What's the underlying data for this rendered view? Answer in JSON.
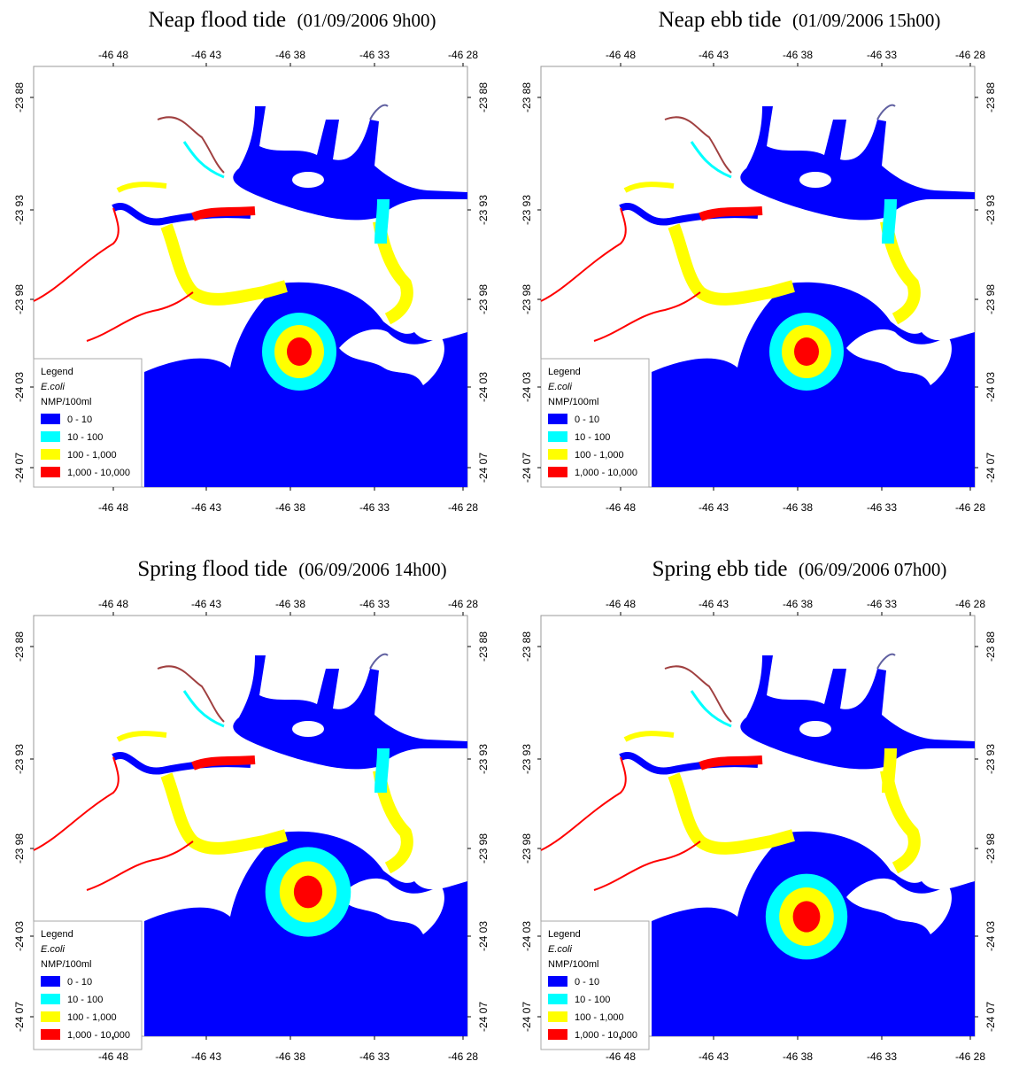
{
  "panels": [
    {
      "title": "Neap flood tide",
      "date": "(01/09/2006 9h00)"
    },
    {
      "title": "Neap ebb tide",
      "date": "(01/09/2006 15h00)"
    },
    {
      "title": "Spring flood tide",
      "date": "(06/09/2006 14h00)"
    },
    {
      "title": "Spring ebb tide",
      "date": "(06/09/2006 07h00)"
    }
  ],
  "axes": {
    "x_ticks": [
      "-46 48",
      "-46 43",
      "-46 38",
      "-46 33",
      "-46 28"
    ],
    "y_ticks": [
      "-23 88",
      "-23 93",
      "-23 98",
      "-24 03",
      "-24 07"
    ]
  },
  "legend": {
    "title": "Legend",
    "subtitle": "E.coli",
    "unit": "NMP/100ml",
    "items": [
      {
        "label": "0 - 10",
        "color": "#0000ff"
      },
      {
        "label": "10 - 100",
        "color": "#00ffff"
      },
      {
        "label": "100 - 1,000",
        "color": "#ffff00"
      },
      {
        "label": "1,000 - 10,000",
        "color": "#ff0000"
      }
    ]
  }
}
